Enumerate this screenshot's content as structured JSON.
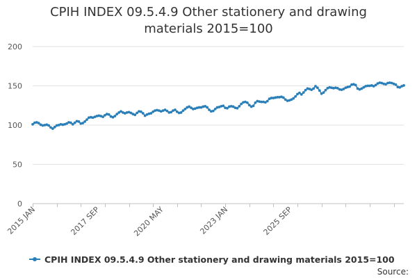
{
  "chart_data": {
    "type": "line",
    "title_lines": [
      "CPIH INDEX 09.5.4.9 Other stationery and drawing",
      "materials 2015=100"
    ],
    "xlabel": "",
    "ylabel": "",
    "ylim": [
      0,
      200
    ],
    "yticks": [
      0,
      50,
      100,
      150,
      200
    ],
    "xtick_labels": [
      "2015 JAN",
      "2017 SEP",
      "2020 MAY",
      "2023 JAN",
      "2025 SEP"
    ],
    "grid": true,
    "legend_position": "bottom",
    "color": "#2a7fb8",
    "series": [
      {
        "name": "CPIH INDEX 09.5.4.9 Other stationery and drawing materials 2015=100",
        "start": "2015 JAN",
        "frequency": "monthly",
        "values": [
          101.0,
          103.0,
          103.5,
          102.5,
          100.5,
          99.5,
          100.0,
          100.5,
          99.5,
          97.0,
          95.5,
          97.5,
          99.5,
          100.0,
          101.0,
          100.5,
          101.0,
          102.0,
          103.5,
          103.0,
          101.0,
          103.0,
          105.0,
          104.5,
          102.0,
          102.5,
          104.5,
          107.0,
          109.5,
          110.0,
          109.5,
          110.5,
          111.5,
          112.0,
          111.5,
          110.5,
          112.5,
          114.0,
          113.5,
          111.0,
          110.0,
          111.5,
          114.0,
          116.0,
          117.5,
          116.0,
          115.0,
          116.0,
          116.5,
          115.5,
          114.0,
          113.0,
          115.5,
          117.5,
          117.0,
          115.0,
          112.0,
          113.5,
          114.5,
          115.0,
          117.0,
          118.5,
          119.0,
          118.5,
          117.5,
          118.5,
          119.5,
          118.0,
          116.0,
          116.5,
          118.5,
          119.5,
          117.0,
          115.5,
          116.0,
          118.5,
          120.5,
          122.5,
          123.5,
          122.0,
          120.5,
          121.0,
          122.0,
          122.5,
          122.5,
          123.5,
          124.0,
          122.5,
          119.5,
          117.5,
          118.0,
          120.5,
          122.5,
          123.0,
          124.0,
          124.5,
          122.0,
          121.5,
          123.5,
          124.0,
          123.5,
          122.0,
          121.5,
          124.0,
          127.0,
          129.0,
          129.5,
          128.5,
          125.5,
          123.5,
          124.5,
          128.5,
          130.5,
          130.0,
          129.5,
          129.5,
          129.0,
          130.5,
          133.5,
          134.5,
          134.5,
          135.0,
          135.5,
          135.5,
          136.0,
          135.0,
          132.5,
          131.0,
          131.5,
          132.5,
          134.0,
          136.5,
          139.5,
          141.0,
          139.0,
          141.5,
          144.5,
          146.5,
          146.0,
          145.0,
          146.5,
          149.5,
          147.5,
          144.0,
          140.0,
          141.5,
          144.5,
          147.0,
          148.0,
          147.5,
          147.0,
          147.5,
          147.0,
          145.5,
          145.0,
          146.0,
          147.5,
          148.5,
          149.0,
          151.5,
          152.0,
          151.0,
          146.5,
          145.5,
          146.5,
          148.0,
          149.5,
          150.0,
          150.0,
          150.5,
          149.5,
          151.0,
          153.0,
          154.0,
          153.5,
          152.5,
          152.0,
          153.5,
          154.0,
          153.5,
          152.5,
          151.5,
          148.5,
          148.0,
          149.5,
          150.5
        ]
      }
    ]
  },
  "source_label": "Source:"
}
